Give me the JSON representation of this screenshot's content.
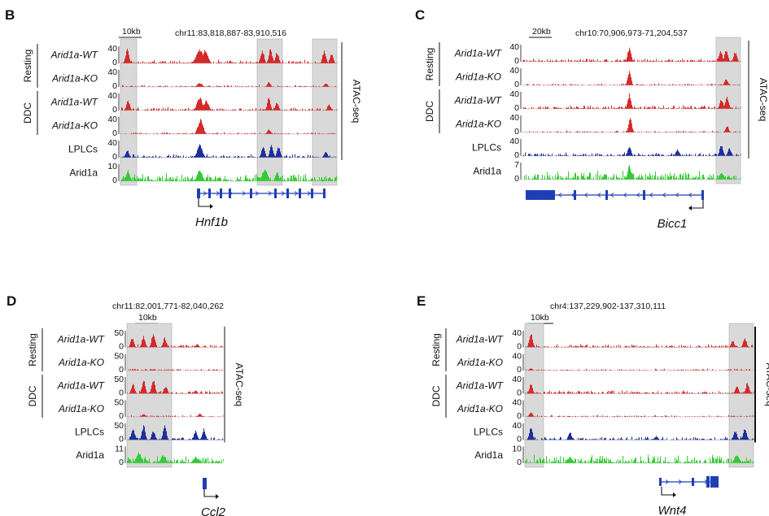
{
  "colors": {
    "atac": "#d42a2a",
    "lplc": "#1f2f9a",
    "arid1a": "#33cc33",
    "gene": "#1f3fb5",
    "shade": "#d9d9d9",
    "baseline": "#bbbbbb"
  },
  "panels": [
    {
      "label": "B",
      "coords": "chr11:83,818,887-83,910,516",
      "scalebar": "10kb",
      "gene": "Hnf1b",
      "side_label": "ATAC-seq",
      "groups": [
        "Resting",
        "DDC"
      ],
      "tracks": [
        {
          "label": "Arid1a-WT",
          "max": "40",
          "min": "0"
        },
        {
          "label": "Arid1a-KO",
          "max": "40",
          "min": "0"
        },
        {
          "label": "Arid1a-WT",
          "max": "40",
          "min": "0"
        },
        {
          "label": "Arid1a-KO",
          "max": "40",
          "min": "0"
        },
        {
          "label": "LPLCs",
          "max": "40",
          "min": "0"
        },
        {
          "label": "Arid1a",
          "max": "10",
          "min": "0"
        }
      ]
    },
    {
      "label": "C",
      "coords": "chr10:70,906,973-71,204,537",
      "scalebar": "20kb",
      "gene": "Bicc1",
      "side_label": "ATAC-seq",
      "groups": [
        "Resting",
        "DDC"
      ],
      "tracks": [
        {
          "label": "Arid1a-WT",
          "max": "40",
          "min": "0"
        },
        {
          "label": "Arid1a-KO",
          "max": "40",
          "min": "0"
        },
        {
          "label": "Arid1a-WT",
          "max": "40",
          "min": "0"
        },
        {
          "label": "Arid1a-KO",
          "max": "40",
          "min": "0"
        },
        {
          "label": "LPLCs",
          "max": "40",
          "min": "0"
        },
        {
          "label": "Arid1a",
          "max": "7",
          "min": "0"
        }
      ]
    },
    {
      "label": "D",
      "coords": "chr11:82,001,771-82,040,262",
      "scalebar": "10kb",
      "gene": "Ccl2",
      "side_label": "ATAC-seq",
      "groups": [
        "Resting",
        "DDC"
      ],
      "tracks": [
        {
          "label": "Arid1a-WT",
          "max": "50",
          "min": "0"
        },
        {
          "label": "Arid1a-KO",
          "max": "50",
          "min": "0"
        },
        {
          "label": "Arid1a-WT",
          "max": "50",
          "min": "0"
        },
        {
          "label": "Arid1a-KO",
          "max": "50",
          "min": "0"
        },
        {
          "label": "LPLCs",
          "max": "50",
          "min": "0"
        },
        {
          "label": "Arid1a",
          "max": "11",
          "min": "0"
        }
      ]
    },
    {
      "label": "E",
      "coords": "chr4:137,229,902-137,310,111",
      "scalebar": "10kb",
      "gene": "Wnt4",
      "side_label": "ATAC-seq",
      "groups": [
        "Resting",
        "DDC"
      ],
      "tracks": [
        {
          "label": "Arid1a-WT",
          "max": "40",
          "min": "0"
        },
        {
          "label": "Arid1a-KO",
          "max": "40",
          "min": "0"
        },
        {
          "label": "Arid1a-WT",
          "max": "40",
          "min": "0"
        },
        {
          "label": "Arid1a-KO",
          "max": "40",
          "min": "0"
        },
        {
          "label": "LPLCs",
          "max": "40",
          "min": "0"
        },
        {
          "label": "Arid1a",
          "max": "10",
          "min": "0"
        }
      ]
    }
  ]
}
